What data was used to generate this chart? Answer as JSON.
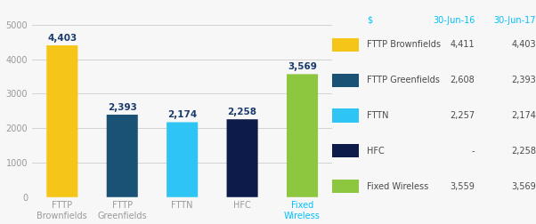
{
  "categories": [
    "FTTP\nBrownfields",
    "FTTP\nGreenfields",
    "FTTN",
    "HFC",
    "Fixed\nWireless"
  ],
  "values": [
    4403,
    2393,
    2174,
    2258,
    3569
  ],
  "bar_colors": [
    "#F5C518",
    "#1A5276",
    "#2EC4F3",
    "#0D1B4B",
    "#8DC63F"
  ],
  "value_label_color": "#1A3A6B",
  "value_labels": [
    "4,403",
    "2,393",
    "2,174",
    "2,258",
    "3,569"
  ],
  "xticklabel_colors": [
    "#888888",
    "#888888",
    "#888888",
    "#888888",
    "#00BFFF"
  ],
  "ylim": [
    0,
    5200
  ],
  "yticks": [
    0,
    1000,
    2000,
    3000,
    4000,
    5000
  ],
  "background_color": "#f7f7f7",
  "grid_color": "#cccccc",
  "legend_items": [
    {
      "label": "FTTP Brownfields",
      "color": "#F5C518"
    },
    {
      "label": "FTTP Greenfields",
      "color": "#1A5276"
    },
    {
      "label": "FTTN",
      "color": "#2EC4F3"
    },
    {
      "label": "HFC",
      "color": "#0D1B4B"
    },
    {
      "label": "Fixed Wireless",
      "color": "#8DC63F"
    }
  ],
  "legend_col1_header": "$",
  "legend_col2_header": "30-Jun-16",
  "legend_col3_header": "30-Jun-17",
  "legend_col2_values": [
    "4,411",
    "2,608",
    "2,257",
    "-",
    "3,559"
  ],
  "legend_col3_values": [
    "4,403",
    "2,393",
    "2,174",
    "2,258",
    "3,569"
  ],
  "header_color": "#00BFFF",
  "label_text_color": "#4a4a4a",
  "axis_text_color": "#999999",
  "bar_label_fontsize": 7.5,
  "tick_fontsize": 7.0,
  "legend_fontsize": 7.0,
  "legend_header_fontsize": 7.0
}
